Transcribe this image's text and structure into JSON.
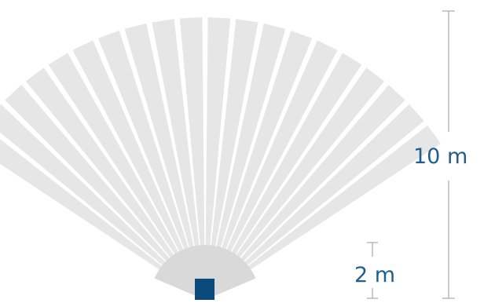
{
  "diagram": {
    "colors": {
      "beam": "#e6e6e6",
      "beam_separator": "#ffffff",
      "near_zone": "#d9d9d9",
      "sensor": "#0c4a7c",
      "dimension_line": "#a9a9a9",
      "dimension_text": "#1f5f8b"
    },
    "beam_count": 20,
    "far_range": {
      "label": "10 m",
      "value": 10,
      "unit": "m"
    },
    "near_range": {
      "label": "2 m",
      "value": 2,
      "unit": "m"
    }
  }
}
